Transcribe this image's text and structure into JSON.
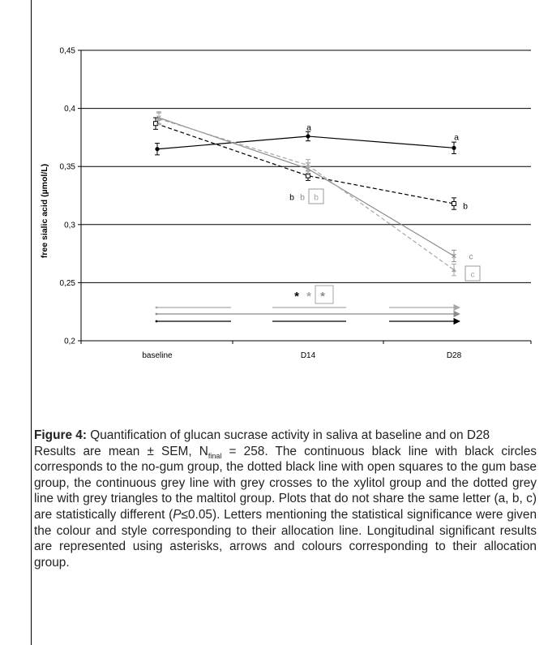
{
  "chart_data": {
    "type": "line",
    "categories": [
      "baseline",
      "D14",
      "D28"
    ],
    "ylabel": "free sialic acid (µmol/L)",
    "xlabel": "",
    "ylim": [
      0.2,
      0.45
    ],
    "yticks": [
      0.2,
      0.25,
      0.3,
      0.35,
      0.4,
      0.45
    ],
    "ytick_labels": [
      "0,2",
      "0,25",
      "0,3",
      "0,35",
      "0,4",
      "0,45"
    ],
    "grid": "horizontal major gridlines",
    "series": [
      {
        "style": "continuous black line, black circles",
        "color": "#000000",
        "dash": "solid",
        "marker": "circle-filled",
        "values": [
          0.365,
          0.376,
          0.366
        ],
        "err": [
          0.005,
          0.004,
          0.005
        ],
        "letters": [
          "",
          "a",
          "a"
        ]
      },
      {
        "style": "dotted black line, open squares",
        "color": "#000000",
        "dash": "dashed",
        "marker": "square-open",
        "values": [
          0.387,
          0.342,
          0.318
        ],
        "err": [
          0.005,
          0.004,
          0.005
        ],
        "letters": [
          "",
          "b",
          "b"
        ]
      },
      {
        "style": "continuous grey line, grey crosses",
        "color": "#8c8c8c",
        "dash": "solid",
        "marker": "cross",
        "values": [
          0.392,
          0.348,
          0.273
        ],
        "err": [
          0.005,
          0.005,
          0.005
        ],
        "letters": [
          "",
          "b",
          "c"
        ]
      },
      {
        "style": "dotted grey line, grey triangles",
        "color": "#a6a6a6",
        "dash": "dashed",
        "marker": "triangle",
        "values": [
          0.391,
          0.351,
          0.261
        ],
        "err": [
          0.005,
          0.005,
          0.005
        ],
        "letters": [
          "",
          "b",
          "c"
        ],
        "boxed": true
      }
    ],
    "annotations": {
      "asterisks": [
        "*",
        "*",
        "*"
      ],
      "arrow_colors": [
        "#a6a6a6",
        "#8c8c8c",
        "#000000"
      ]
    }
  },
  "caption": {
    "label": "Figure 4:",
    "title": "Quantification of glucan sucrase activity in saliva at baseline and on D28",
    "body_1": "Results are mean ± SEM, N",
    "body_sub": "final",
    "body_2": " = 258. The continuous black line with black circles corresponds to the no-gum group, the dotted black line with open squares to the gum base group, the continuous grey line with grey crosses to the xylitol group and the dotted grey line with grey triangles to the maltitol group. Plots that do not share the same letter (a, b, c) are statistically different (",
    "body_p": "P",
    "body_3": "≤0.05). Letters mentioning the statistical significance were given the colour and style corresponding to their allocation line. Longitudinal significant results are represented using asterisks, arrows and colours corresponding to their allocation group."
  }
}
